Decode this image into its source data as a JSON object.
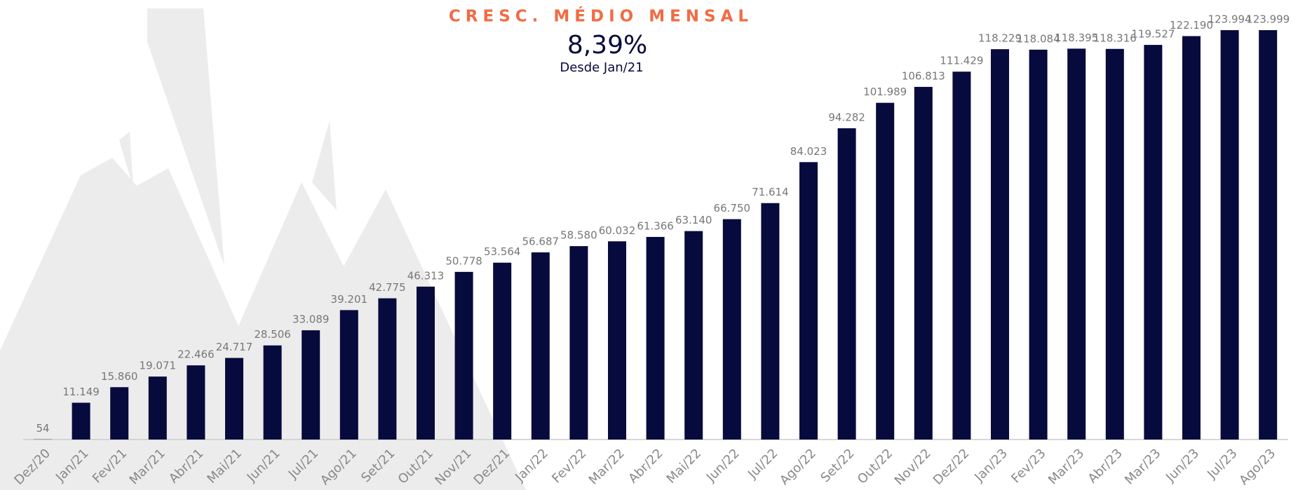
{
  "chart_data": {
    "type": "bar",
    "title": "CRESC. MÉDIO MENSAL",
    "highlight": "8,39%",
    "subtitle": "Desde Jan/21",
    "color": "#070a3c",
    "categories": [
      "Dez/20",
      "Jan/21",
      "Fev/21",
      "Mar/21",
      "Abr/21",
      "Mai/21",
      "Jun/21",
      "Jul/21",
      "Ago/21",
      "Set/21",
      "Out/21",
      "Nov/21",
      "Dez/21",
      "Jan/22",
      "Fev/22",
      "Mar/22",
      "Abr/22",
      "Mai/22",
      "Jun/22",
      "Jul/22",
      "Ago/22",
      "Set/22",
      "Out/22",
      "Nov/22",
      "Dez/22",
      "Jan/23",
      "Fev/23",
      "Mar/23",
      "Abr/23",
      "Mar/23",
      "Jun/23",
      "Jul/23",
      "Ago/23"
    ],
    "values": [
      54,
      11149,
      15860,
      19071,
      22466,
      24717,
      28506,
      33089,
      39201,
      42775,
      46313,
      50778,
      53564,
      56687,
      58580,
      60032,
      61366,
      63140,
      66750,
      71614,
      84023,
      94282,
      101989,
      106813,
      111429,
      118229,
      118084,
      118395,
      118316,
      119527,
      122190,
      123994,
      123999
    ],
    "value_labels": [
      "54",
      "11.149",
      "15.860",
      "19.071",
      "22.466",
      "24.717",
      "28.506",
      "33.089",
      "39.201",
      "42.775",
      "46.313",
      "50.778",
      "53.564",
      "56.687",
      "58.580",
      "60.032",
      "61.366",
      "63.140",
      "66.750",
      "71.614",
      "84.023",
      "94.282",
      "101.989",
      "106.813",
      "111.429",
      "118.229",
      "118.084",
      "118.395",
      "118.316",
      "119.527",
      "122.190",
      "123.994",
      "123.999"
    ]
  }
}
